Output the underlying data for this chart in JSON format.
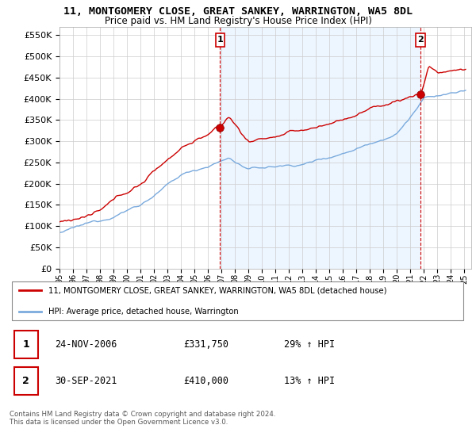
{
  "title": "11, MONTGOMERY CLOSE, GREAT SANKEY, WARRINGTON, WA5 8DL",
  "subtitle": "Price paid vs. HM Land Registry's House Price Index (HPI)",
  "ylabel_ticks": [
    "£0",
    "£50K",
    "£100K",
    "£150K",
    "£200K",
    "£250K",
    "£300K",
    "£350K",
    "£400K",
    "£450K",
    "£500K",
    "£550K"
  ],
  "ytick_values": [
    0,
    50000,
    100000,
    150000,
    200000,
    250000,
    300000,
    350000,
    400000,
    450000,
    500000,
    550000
  ],
  "ylim": [
    0,
    570000
  ],
  "xlim_start": 1995.0,
  "xlim_end": 2025.5,
  "marker1_x": 2006.9,
  "marker1_y": 331750,
  "marker2_x": 2021.75,
  "marker2_y": 410000,
  "vline1_x": 2006.9,
  "vline2_x": 2021.75,
  "legend_line1": "11, MONTGOMERY CLOSE, GREAT SANKEY, WARRINGTON, WA5 8DL (detached house)",
  "legend_line2": "HPI: Average price, detached house, Warrington",
  "table_row1_num": "1",
  "table_row1_date": "24-NOV-2006",
  "table_row1_price": "£331,750",
  "table_row1_hpi": "29% ↑ HPI",
  "table_row2_num": "2",
  "table_row2_date": "30-SEP-2021",
  "table_row2_price": "£410,000",
  "table_row2_hpi": "13% ↑ HPI",
  "footer": "Contains HM Land Registry data © Crown copyright and database right 2024.\nThis data is licensed under the Open Government Licence v3.0.",
  "line_color_red": "#cc0000",
  "line_color_blue": "#7aaadd",
  "fill_color_blue": "#ddeeff",
  "grid_color": "#cccccc",
  "vline_color": "#cc0000"
}
